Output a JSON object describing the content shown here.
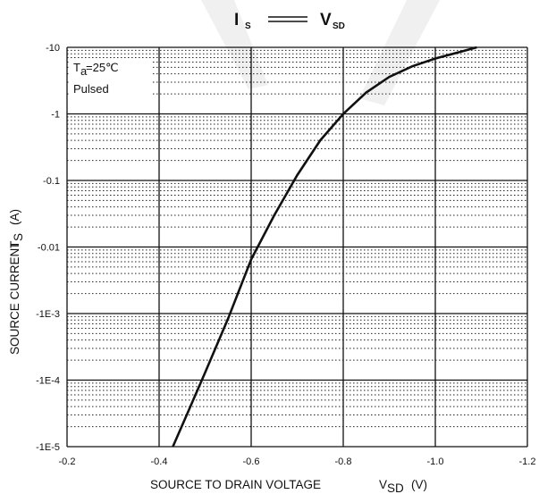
{
  "chart_data": {
    "type": "line",
    "title": {
      "y_symbol": "I",
      "y_sub": "S",
      "x_symbol": "V",
      "x_sub": "SD"
    },
    "xlabel": {
      "text": "SOURCE TO DRAIN VOLTAGE",
      "symbol": "V",
      "sub": "SD",
      "unit": "(V)"
    },
    "ylabel": {
      "text": "SOURCE CURRENT",
      "symbol": "I",
      "sub": "S",
      "unit": "(A)"
    },
    "xlim": [
      -0.2,
      -1.2
    ],
    "ylim": [
      1e-05,
      10
    ],
    "yscale": "log",
    "grid": true,
    "x_ticks": [
      -0.2,
      -0.4,
      -0.6,
      -0.8,
      -1.0,
      -1.2
    ],
    "x_tick_labels": [
      "-0.2",
      "-0.4",
      "-0.6",
      "-0.8",
      "-1.0",
      "-1.2"
    ],
    "y_ticks": [
      1e-05,
      0.0001,
      0.001,
      0.01,
      0.1,
      1,
      10
    ],
    "y_tick_labels": [
      "-1E-5",
      "-1E-4",
      "-1E-3",
      "-0.01",
      "-0.1",
      "-1",
      "-10"
    ],
    "annotations": {
      "temp_symbol": "T",
      "temp_sub": "a",
      "temp_value": "=25℃",
      "mode": "Pulsed"
    },
    "series": [
      {
        "x": [
          -0.43,
          -0.46,
          -0.5,
          -0.55,
          -0.6,
          -0.65,
          -0.7,
          -0.75,
          -0.8,
          -0.85,
          -0.9,
          -0.95,
          -1.0,
          -1.05,
          -1.09
        ],
        "y": [
          1e-05,
          3e-05,
          0.00013,
          0.00085,
          0.0065,
          0.03,
          0.12,
          0.4,
          1.0,
          2.1,
          3.6,
          5.2,
          6.8,
          8.4,
          10
        ]
      }
    ]
  }
}
